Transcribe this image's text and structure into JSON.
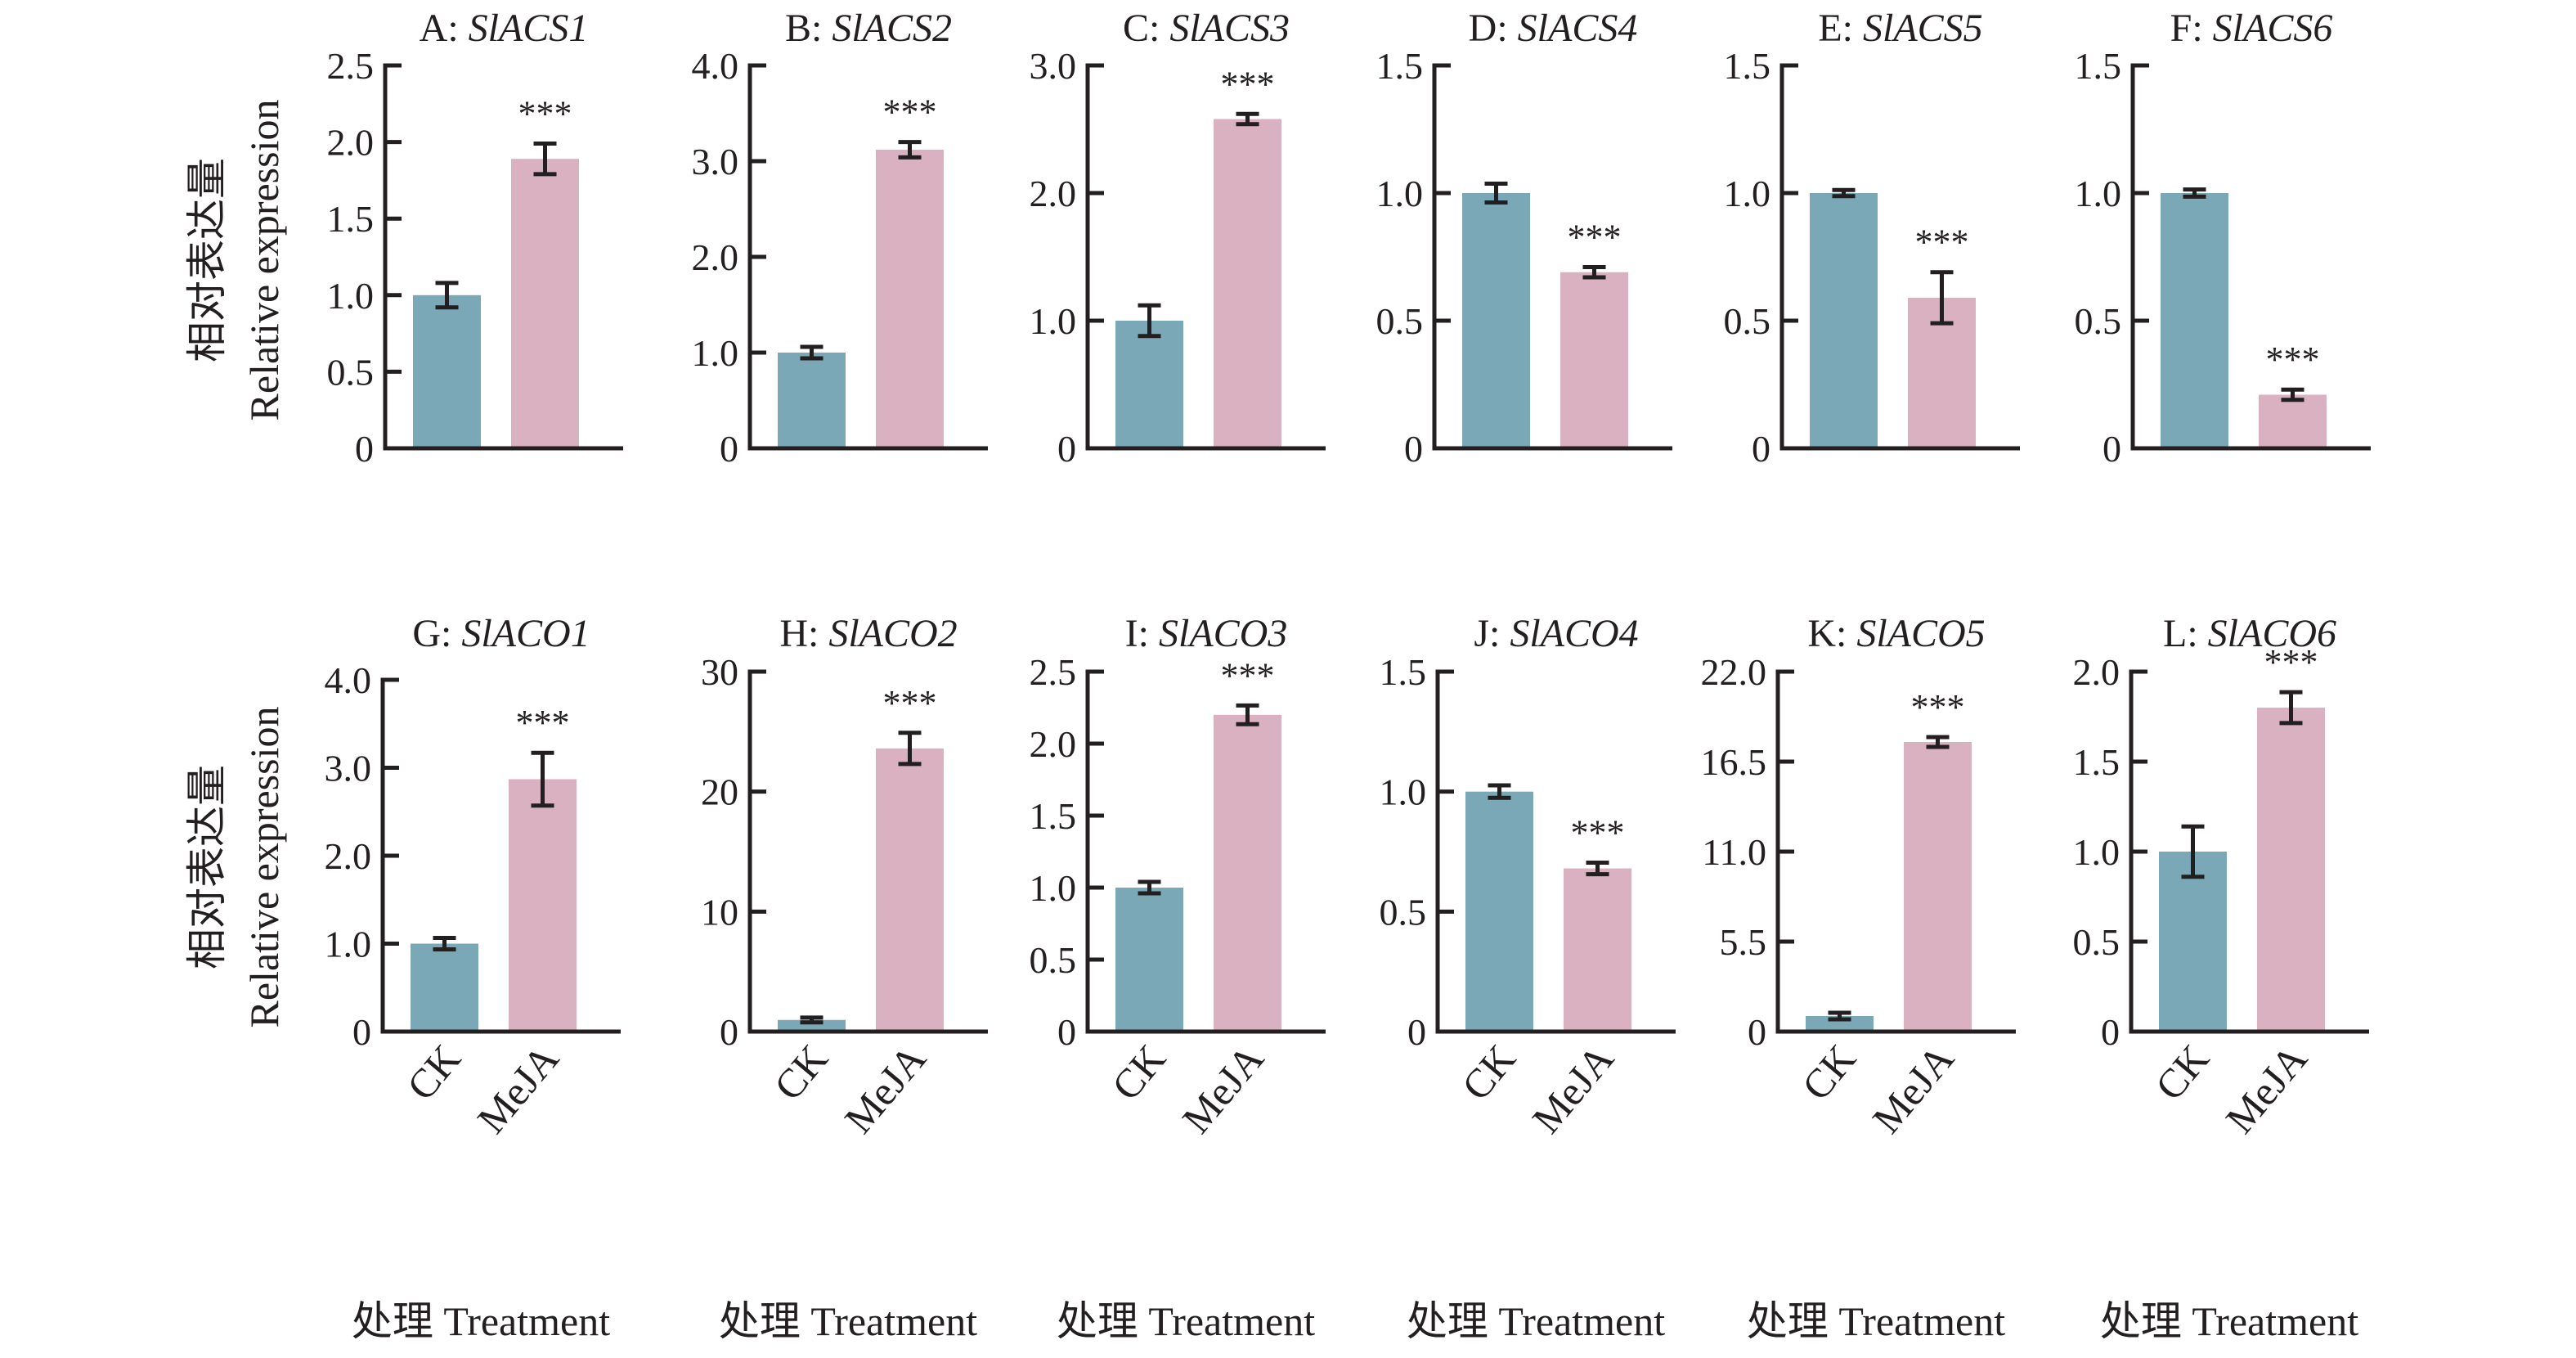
{
  "colors": {
    "ck": "#7AA8B6",
    "meja": "#D9B1C1",
    "ink": "#231F20",
    "background": "#FFFFFF"
  },
  "chart_data": {
    "type": "bar",
    "layout": "grid 2 rows x 6 columns of small bar charts",
    "categories": [
      "CK",
      "MeJA"
    ],
    "ylabel_cn": "相对表达量",
    "ylabel_en": "Relative expression",
    "xlabel": "处理 Treatment",
    "significance_marker": "***",
    "grid": false,
    "legend": "none",
    "panels": [
      {
        "letter": "A:",
        "gene": "SlACS1",
        "ylim": [
          0,
          2.5
        ],
        "ticks": [
          "0",
          "0.5",
          "1.0",
          "1.5",
          "2.0",
          "2.5"
        ],
        "tick_values": [
          0,
          0.5,
          1.0,
          1.5,
          2.0,
          2.5
        ],
        "values": [
          1.0,
          1.89
        ],
        "errors": [
          0.08,
          0.1
        ],
        "sig": [
          false,
          true
        ]
      },
      {
        "letter": "B:",
        "gene": "SlACS2",
        "ylim": [
          0,
          4.0
        ],
        "ticks": [
          "0",
          "1.0",
          "2.0",
          "3.0",
          "4.0"
        ],
        "tick_values": [
          0,
          1.0,
          2.0,
          3.0,
          4.0
        ],
        "values": [
          1.0,
          3.12
        ],
        "errors": [
          0.06,
          0.08
        ],
        "sig": [
          false,
          true
        ]
      },
      {
        "letter": "C:",
        "gene": "SlACS3",
        "ylim": [
          0,
          3.0
        ],
        "ticks": [
          "0",
          "1.0",
          "2.0",
          "3.0"
        ],
        "tick_values": [
          0,
          1.0,
          2.0,
          3.0
        ],
        "values": [
          1.0,
          2.58
        ],
        "errors": [
          0.12,
          0.04
        ],
        "sig": [
          false,
          true
        ]
      },
      {
        "letter": "D:",
        "gene": "SlACS4",
        "ylim": [
          0,
          1.5
        ],
        "ticks": [
          "0",
          "0.5",
          "1.0",
          "1.5"
        ],
        "tick_values": [
          0,
          0.5,
          1.0,
          1.5
        ],
        "values": [
          1.0,
          0.69
        ],
        "errors": [
          0.037,
          0.02
        ],
        "sig": [
          false,
          true
        ]
      },
      {
        "letter": "E:",
        "gene": "SlACS5",
        "ylim": [
          0,
          1.5
        ],
        "ticks": [
          "0",
          "0.5",
          "1.0",
          "1.5"
        ],
        "tick_values": [
          0,
          0.5,
          1.0,
          1.5
        ],
        "values": [
          1.0,
          0.59
        ],
        "errors": [
          0.012,
          0.1
        ],
        "sig": [
          false,
          true
        ]
      },
      {
        "letter": "F:",
        "gene": "SlACS6",
        "ylim": [
          0,
          1.5
        ],
        "ticks": [
          "0",
          "0.5",
          "1.0",
          "1.5"
        ],
        "tick_values": [
          0,
          0.5,
          1.0,
          1.5
        ],
        "values": [
          1.0,
          0.21
        ],
        "errors": [
          0.014,
          0.02
        ],
        "sig": [
          false,
          true
        ]
      },
      {
        "letter": "G:",
        "gene": "SlACO1",
        "ylim": [
          0,
          4.0
        ],
        "ticks": [
          "0",
          "1.0",
          "2.0",
          "3.0",
          "4.0"
        ],
        "tick_values": [
          0,
          1.0,
          2.0,
          3.0,
          4.0
        ],
        "values": [
          1.0,
          2.87
        ],
        "errors": [
          0.065,
          0.3
        ],
        "sig": [
          false,
          true
        ]
      },
      {
        "letter": "H:",
        "gene": "SlACO2",
        "ylim": [
          0,
          30
        ],
        "ticks": [
          "0",
          "10",
          "20",
          "30"
        ],
        "tick_values": [
          0,
          10,
          20,
          30
        ],
        "values": [
          0.97,
          23.6
        ],
        "errors": [
          0.2,
          1.3
        ],
        "sig": [
          false,
          true
        ]
      },
      {
        "letter": "I:",
        "gene": "SlACO3",
        "ylim": [
          0,
          2.5
        ],
        "ticks": [
          "0",
          "0.5",
          "1.0",
          "1.5",
          "2.0",
          "2.5"
        ],
        "tick_values": [
          0,
          0.5,
          1.0,
          1.5,
          2.0,
          2.5
        ],
        "values": [
          1.0,
          2.2
        ],
        "errors": [
          0.04,
          0.065
        ],
        "sig": [
          false,
          true
        ]
      },
      {
        "letter": "J:",
        "gene": "SlACO4",
        "ylim": [
          0,
          1.5
        ],
        "ticks": [
          "0",
          "0.5",
          "1.0",
          "1.5"
        ],
        "tick_values": [
          0,
          0.5,
          1.0,
          1.5
        ],
        "values": [
          1.0,
          0.68
        ],
        "errors": [
          0.026,
          0.024
        ],
        "sig": [
          false,
          true
        ]
      },
      {
        "letter": "K:",
        "gene": "SlACO5",
        "ylim": [
          0,
          22.0
        ],
        "ticks": [
          "0",
          "5.5",
          "11.0",
          "16.5",
          "22.0"
        ],
        "tick_values": [
          0,
          5.5,
          11.0,
          16.5,
          22.0
        ],
        "values": [
          0.95,
          17.7
        ],
        "errors": [
          0.2,
          0.3
        ],
        "sig": [
          false,
          true
        ]
      },
      {
        "letter": "L:",
        "gene": "SlACO6",
        "ylim": [
          0,
          2.0
        ],
        "ticks": [
          "0",
          "0.5",
          "1.0",
          "1.5",
          "2.0"
        ],
        "tick_values": [
          0,
          0.5,
          1.0,
          1.5,
          2.0
        ],
        "values": [
          1.0,
          1.8
        ],
        "errors": [
          0.14,
          0.086
        ],
        "sig": [
          false,
          true
        ]
      }
    ]
  }
}
